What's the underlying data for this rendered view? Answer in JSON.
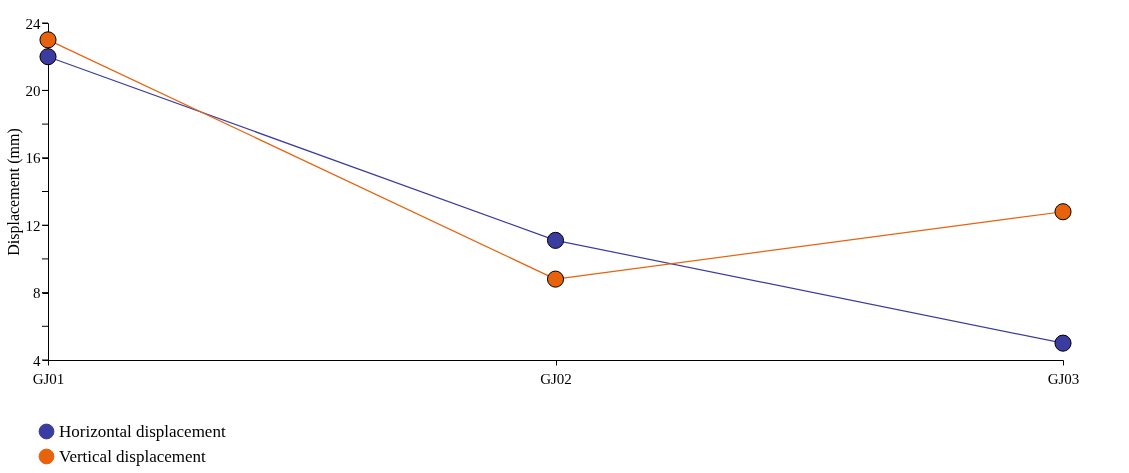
{
  "chart_data": {
    "type": "line",
    "ylabel": "Displacement (mm)",
    "categories": [
      "GJ01",
      "GJ02",
      "GJ03"
    ],
    "series": [
      {
        "name": "Horizontal displacement",
        "color": "#3b3ca0",
        "values": [
          22,
          11.1,
          5.0
        ]
      },
      {
        "name": "Vertical displacement",
        "color": "#e8620c",
        "values": [
          23,
          8.8,
          12.8
        ]
      }
    ],
    "ylim": [
      4,
      24
    ],
    "yticks": [
      4,
      {
        "value": 6,
        "label": null
      },
      8,
      {
        "value": 10,
        "label": null
      },
      12,
      {
        "value": 14,
        "label": null
      },
      16,
      {
        "value": 18,
        "label": null
      },
      20,
      {
        "value": 22,
        "label": null
      },
      24
    ],
    "grid": false,
    "legend": "bottom left",
    "marker": "circle",
    "line_style": "solid"
  }
}
